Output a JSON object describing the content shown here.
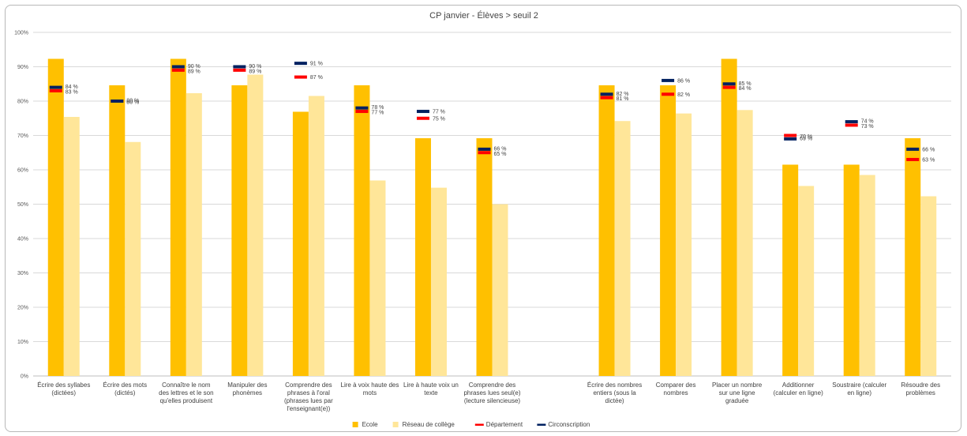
{
  "chart_data": {
    "type": "bar",
    "title": "CP janvier - Élèves > seuil 2",
    "ylim": [
      0,
      100
    ],
    "y_ticks": [
      "0%",
      "10%",
      "20%",
      "30%",
      "40%",
      "50%",
      "60%",
      "70%",
      "80%",
      "90%",
      "100%"
    ],
    "grid": true,
    "legend_position": "bottom",
    "categories": [
      [
        "Écrire des syllabes",
        "(dictées)"
      ],
      [
        "Écrire des mots",
        "(dictés)"
      ],
      [
        "Connaître le nom",
        "des lettres et le son",
        "qu'elles produisent"
      ],
      [
        "Manipuler des",
        "phonèmes"
      ],
      [
        "Comprendre des",
        "phrases à l'oral",
        "(phrases lues par",
        "l'enseignant(e))"
      ],
      [
        "Lire à voix haute des",
        "mots"
      ],
      [
        "Lire à haute voix un",
        "texte"
      ],
      [
        "Comprendre des",
        "phrases lues seul(e)",
        "(lecture silencieuse)"
      ],
      [],
      [
        "Écrire des nombres",
        "entiers (sous la",
        "dictée)"
      ],
      [
        "Comparer des",
        "nombres"
      ],
      [
        "Placer un nombre",
        "sur une ligne",
        "graduée"
      ],
      [
        "Additionner",
        "(calculer en ligne)"
      ],
      [
        "Soustraire (calculer",
        "en ligne)"
      ],
      [
        "Résoudre des",
        "problèmes"
      ]
    ],
    "series": [
      {
        "name": "Ecole",
        "kind": "bar",
        "color": "#FFC000",
        "values": [
          92.3,
          84.6,
          92.3,
          84.6,
          76.9,
          84.6,
          69.2,
          69.2,
          null,
          84.6,
          84.6,
          92.3,
          61.5,
          61.5,
          69.2
        ]
      },
      {
        "name": "Réseau de collège",
        "kind": "bar",
        "color": "#FFE699",
        "values": [
          75.4,
          68.1,
          82.3,
          87.7,
          81.5,
          56.9,
          54.8,
          50.0,
          null,
          74.2,
          76.4,
          77.4,
          55.3,
          58.5,
          52.3
        ]
      },
      {
        "name": "Département",
        "kind": "marker",
        "color": "#FF0000",
        "values": [
          83,
          80,
          89,
          89,
          87,
          77,
          75,
          65,
          null,
          81,
          82,
          84,
          70,
          73,
          63
        ],
        "labels": [
          "83 %",
          "80 %",
          "89 %",
          "89 %",
          "87 %",
          "77 %",
          "75 %",
          "65 %",
          null,
          "81 %",
          "82 %",
          "84 %",
          "70 %",
          "73 %",
          "63 %"
        ]
      },
      {
        "name": "Circonscription",
        "kind": "marker",
        "color": "#002060",
        "values": [
          84,
          80,
          90,
          90,
          91,
          78,
          77,
          66,
          null,
          82,
          86,
          85,
          69,
          74,
          66
        ],
        "labels": [
          "84 %",
          "80 %",
          "90 %",
          "90 %",
          "91 %",
          "78 %",
          "77 %",
          "66 %",
          null,
          "82 %",
          "86 %",
          "85 %",
          "69 %",
          "74 %",
          "66 %"
        ]
      }
    ]
  }
}
